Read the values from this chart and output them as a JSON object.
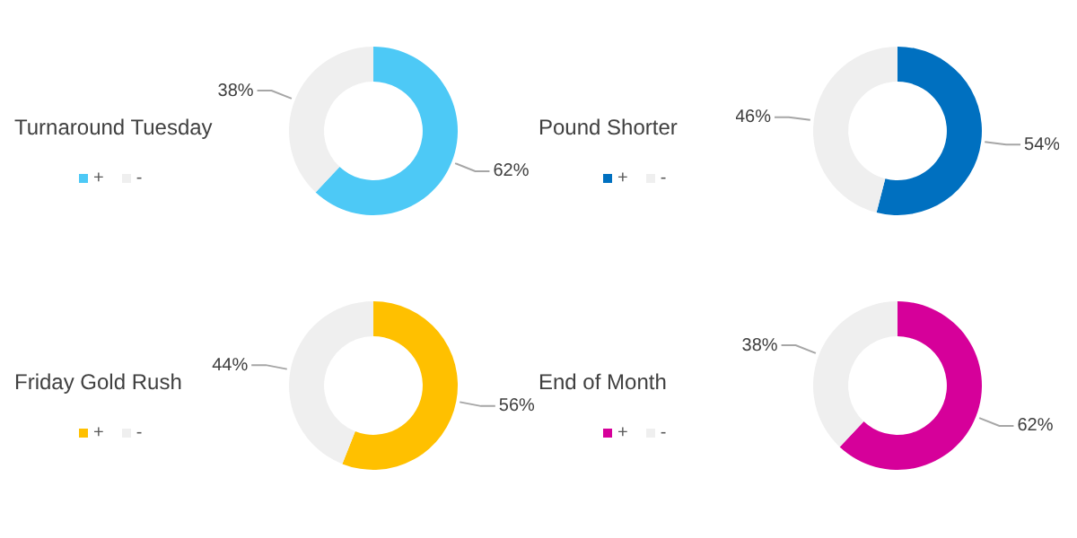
{
  "chart_data": [
    {
      "type": "donut",
      "title": "Turnaround Tuesday",
      "categories": [
        "+",
        "-"
      ],
      "values": [
        62,
        38
      ],
      "value_labels": [
        "62%",
        "38%"
      ],
      "colors": [
        "#4dc9f6",
        "#efefef"
      ],
      "legend": "left"
    },
    {
      "type": "donut",
      "title": "Pound Shorter",
      "categories": [
        "+",
        "-"
      ],
      "values": [
        54,
        46
      ],
      "value_labels": [
        "54%",
        "46%"
      ],
      "colors": [
        "#0070c0",
        "#efefef"
      ],
      "legend": "left"
    },
    {
      "type": "donut",
      "title": "Friday Gold Rush",
      "categories": [
        "+",
        "-"
      ],
      "values": [
        56,
        44
      ],
      "value_labels": [
        "56%",
        "44%"
      ],
      "colors": [
        "#ffc000",
        "#efefef"
      ],
      "legend": "left"
    },
    {
      "type": "donut",
      "title": "End of Month",
      "categories": [
        "+",
        "-"
      ],
      "values": [
        62,
        38
      ],
      "value_labels": [
        "62%",
        "38%"
      ],
      "colors": [
        "#d6009a",
        "#efefef"
      ],
      "legend": "left"
    }
  ]
}
